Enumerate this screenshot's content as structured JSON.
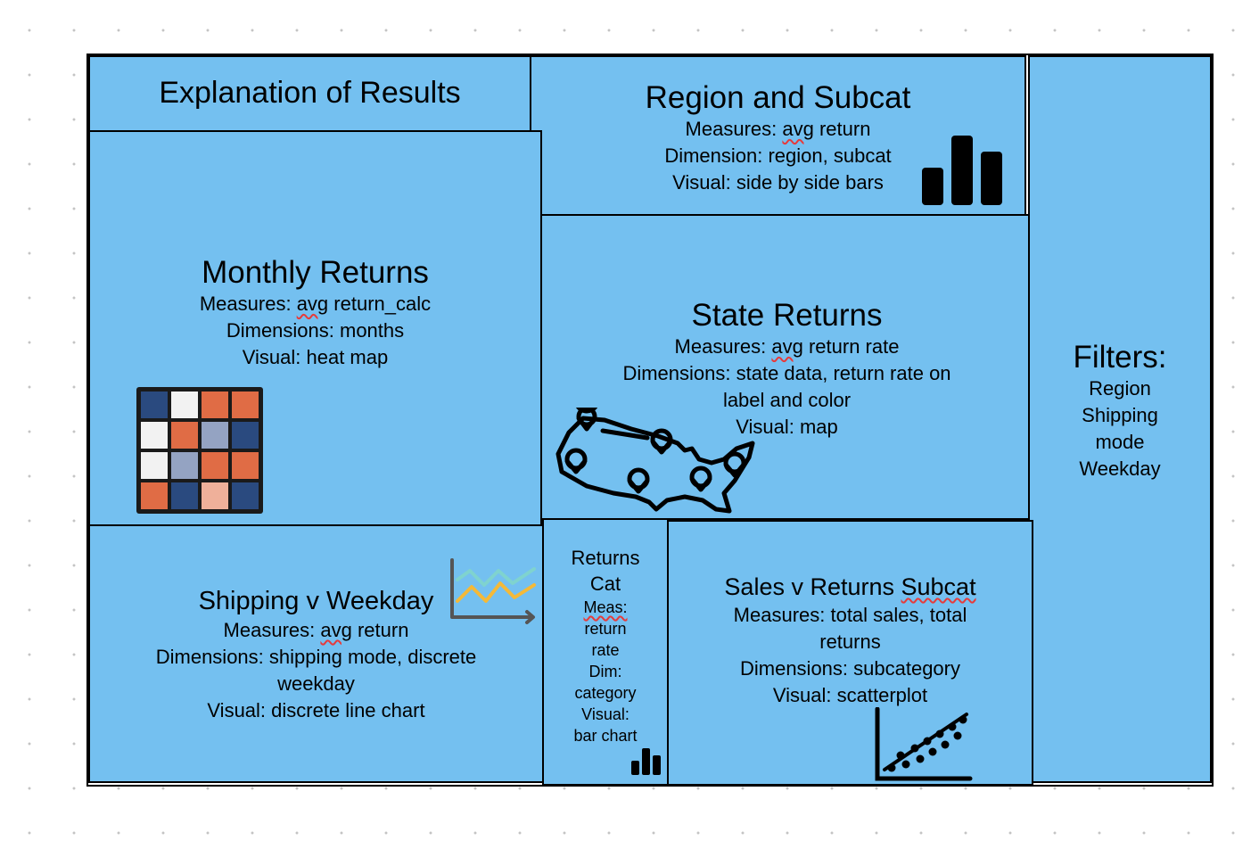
{
  "panels": {
    "explanation": {
      "title": "Explanation of Results"
    },
    "region_subcat": {
      "title": "Region and Subcat",
      "measures": {
        "prefix": "Measures: ",
        "word": "avg",
        "suffix": " return"
      },
      "dimension": "Dimension: region, subcat",
      "visual": "Visual: side by side bars",
      "icon": "bar-chart-icon"
    },
    "monthly": {
      "title": "Monthly Returns",
      "measures": {
        "prefix": "Measures: ",
        "word": "avg",
        "suffix": " return_calc"
      },
      "dimensions": "Dimensions: months",
      "visual": "Visual: heat map",
      "icon": "heatmap-grid-icon",
      "heatmap_colors": [
        [
          "#2a4a7f",
          "#f2f2f2",
          "#e06c45",
          "#e06c45"
        ],
        [
          "#f2f2f2",
          "#e06c45",
          "#94a3c2",
          "#2a4a7f"
        ],
        [
          "#f2f2f2",
          "#94a3c2",
          "#e06c45",
          "#e06c45"
        ],
        [
          "#e06c45",
          "#2a4a7f",
          "#efb09a",
          "#2a4a7f"
        ]
      ]
    },
    "state": {
      "title": "State Returns",
      "measures": {
        "prefix": "Measures: ",
        "word": "avg",
        "suffix": " return rate"
      },
      "dimensions_line1": "Dimensions: state data, return rate on",
      "dimensions_line2": "label and color",
      "visual": "Visual: map",
      "icon": "us-map-icon"
    },
    "filters": {
      "title": "Filters:",
      "items": [
        "Region",
        "Shipping",
        "mode",
        "Weekday"
      ]
    },
    "shipping": {
      "title": "Shipping v Weekday",
      "measures": {
        "prefix": "Measures: ",
        "word": "avg",
        "suffix": " return"
      },
      "dimensions_line1": "Dimensions: shipping mode, discrete",
      "dimensions_line2": "weekday",
      "visual": "Visual: discrete line chart",
      "icon": "line-chart-icon"
    },
    "returns_cat": {
      "title_line1": "Returns",
      "title_line2": "Cat",
      "meas_label": "Meas:",
      "lines": [
        "return",
        "rate",
        "Dim:",
        "category",
        "Visual:",
        "bar chart"
      ],
      "icon": "mini-bar-chart-icon"
    },
    "sales_returns": {
      "title": {
        "prefix": "Sales v Returns ",
        "word": "Subcat"
      },
      "measures_line1": "Measures: total sales, total",
      "measures_line2": "returns",
      "dimensions": "Dimensions: subcategory",
      "visual": "Visual: scatterplot",
      "icon": "scatterplot-icon"
    }
  }
}
